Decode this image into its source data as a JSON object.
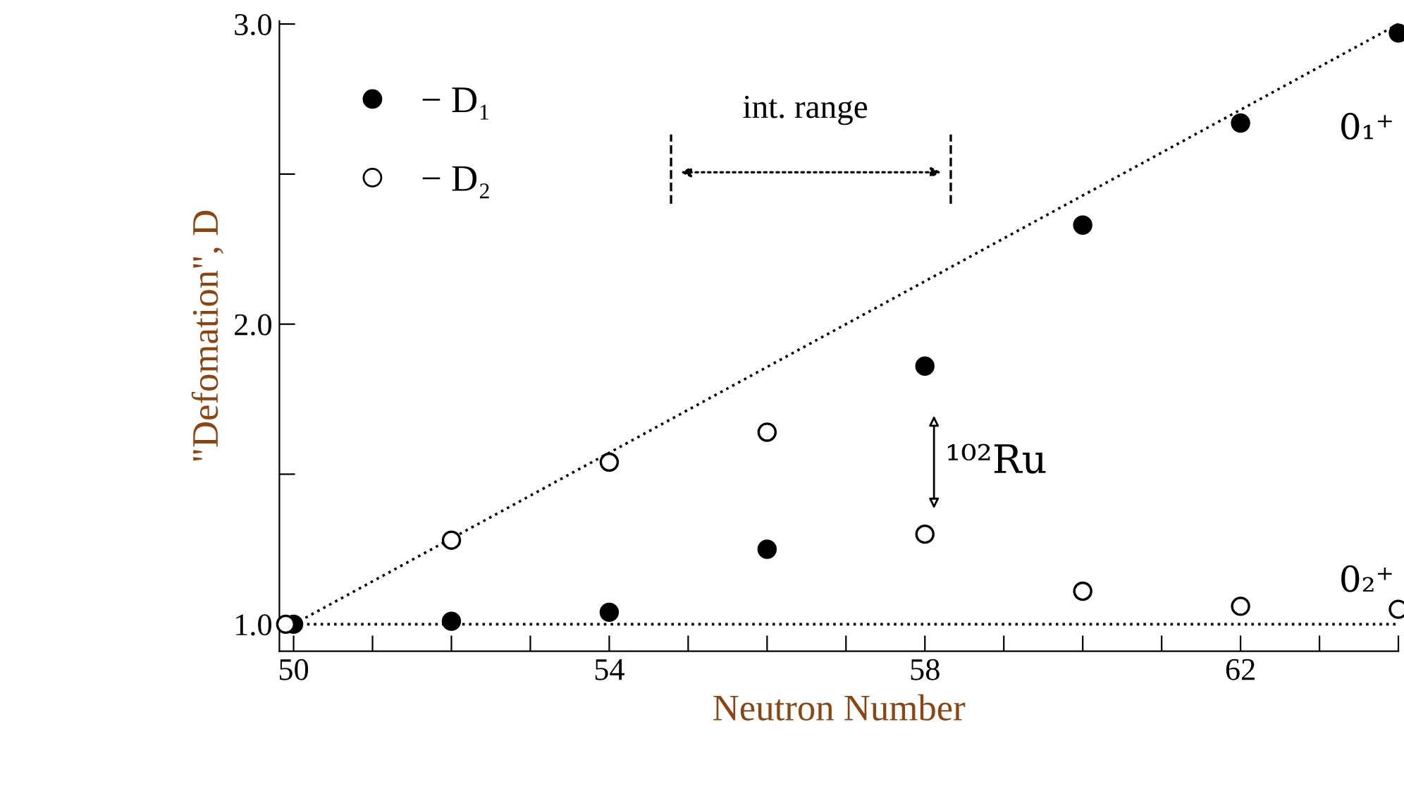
{
  "chart_data": {
    "type": "scatter",
    "xlabel": "Neutron Number",
    "ylabel": "\"Defomation\", D",
    "xlim": [
      49.82,
      64
    ],
    "ylim": [
      0.91,
      3.01
    ],
    "xticks": [
      50,
      {
        "value": 51,
        "label": null
      },
      {
        "value": 52,
        "label": null
      },
      {
        "value": 53,
        "label": null
      },
      54,
      {
        "value": 55,
        "label": null
      },
      {
        "value": 56,
        "label": null
      },
      {
        "value": 57,
        "label": null
      },
      58,
      {
        "value": 59,
        "label": null
      },
      {
        "value": 60,
        "label": null
      },
      {
        "value": 61,
        "label": null
      },
      62,
      {
        "value": 63,
        "label": null
      },
      {
        "value": 64,
        "label": null
      }
    ],
    "yticks": [
      {
        "value": 1.0,
        "label": "1.0"
      },
      {
        "value": 1.5,
        "label": null
      },
      {
        "value": 2.0,
        "label": "2.0"
      },
      {
        "value": 2.5,
        "label": null
      },
      {
        "value": 3.0,
        "label": "3.0"
      }
    ],
    "grid": false,
    "legend": "top left",
    "series": [
      {
        "name": "− D₁",
        "color": "#000000",
        "marker": "circle",
        "x": [
          50,
          52,
          54,
          56,
          58,
          60,
          62,
          64
        ],
        "values": [
          1.0,
          1.01,
          1.04,
          1.25,
          1.86,
          2.33,
          2.67,
          2.97
        ]
      },
      {
        "name": "− D₂",
        "color": "#000000",
        "marker": "circle",
        "x": [
          49.9,
          52,
          54,
          56,
          58,
          60,
          62,
          64
        ],
        "values": [
          1.0,
          1.28,
          1.54,
          1.64,
          1.3,
          1.11,
          1.06,
          1.05
        ]
      },
      {
        "type": "line",
        "color": "#000000",
        "line_style": "dotted",
        "x": [
          50,
          64
        ],
        "values": [
          1.0,
          3.0
        ]
      },
      {
        "type": "line",
        "color": "#000000",
        "line_style": "dotted",
        "x": [
          50,
          64
        ],
        "values": [
          1.0,
          1.0
        ]
      }
    ],
    "annotations": [
      "int. range",
      "0₁⁺",
      "0₂⁺",
      "¹⁰²Ru"
    ]
  }
}
